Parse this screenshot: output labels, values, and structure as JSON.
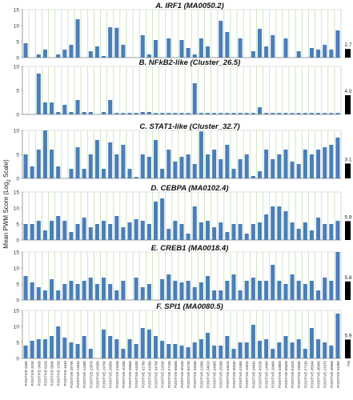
{
  "figure": {
    "ylabel": "Mean PWM Score (Log",
    "ylabel_sub": "2",
    "ylabel_end": " Scale)"
  },
  "colors": {
    "bar": "#4a7ebb",
    "bar_dark": "#000000",
    "grid": "#c6e0b4",
    "axis": "#888888",
    "title": "#111111"
  },
  "chart_data": [
    {
      "type": "bar",
      "title": "A. IRF1 (MA0050.2)",
      "ylim": [
        0,
        15
      ],
      "yticks": [
        0,
        5,
        10,
        15
      ],
      "values": [
        4.5,
        0,
        1,
        2.5,
        0,
        1,
        2.5,
        4,
        12,
        0,
        2,
        3.5,
        0.5,
        9.5,
        9.3,
        4,
        0,
        0,
        7,
        1,
        5.5,
        0,
        6,
        0,
        5.5,
        3,
        1,
        6,
        3.5,
        0,
        11.5,
        8,
        0,
        6,
        0,
        2,
        9,
        3.5,
        7,
        0,
        6,
        0,
        2,
        0,
        3,
        2.5,
        4,
        2.5,
        8.5
      ],
      "side_value": 2.7,
      "side_label": "2.7"
    },
    {
      "type": "bar",
      "title": "B. NFkB2-like (Cluster_26.5)",
      "ylim": [
        0,
        10
      ],
      "yticks": [
        0,
        5,
        10
      ],
      "values": [
        0,
        0,
        8.5,
        2.5,
        2.5,
        0.5,
        2,
        0.5,
        3,
        0.5,
        0.5,
        0,
        0.5,
        3,
        0.3,
        0.3,
        0.3,
        0.3,
        0.5,
        0.5,
        0.3,
        0.3,
        0.3,
        0.3,
        0.3,
        0.3,
        6.5,
        0.3,
        0.3,
        0.3,
        0.3,
        0.3,
        0.3,
        0.3,
        0.3,
        0.3,
        1.5,
        0.3,
        0.3,
        0.3,
        0.3,
        0.3,
        0.3,
        0.3,
        0.3,
        0.3,
        0.3,
        0.3,
        0.3
      ],
      "side_value": 4,
      "side_label": "4.0"
    },
    {
      "type": "bar",
      "title": "C. STAT1-like (Cluster_32.7)",
      "ylim": [
        0,
        10
      ],
      "yticks": [
        0,
        5,
        10
      ],
      "values": [
        5,
        2.5,
        6,
        10,
        6,
        2.5,
        0,
        2,
        6.5,
        2,
        5,
        8,
        2,
        7.5,
        5,
        7,
        2,
        0.3,
        5,
        4.5,
        8,
        2,
        6,
        3.5,
        4.5,
        5,
        3,
        9.8,
        5,
        6,
        4,
        7,
        2,
        4,
        5,
        0.5,
        1.5,
        6,
        4,
        5,
        6,
        3.5,
        3,
        6,
        5,
        6,
        6.5,
        7,
        8.5
      ],
      "side_value": 3.1,
      "side_label": "3.1"
    },
    {
      "type": "bar",
      "title": "D. CEBPA (MA0102.4)",
      "ylim": [
        0,
        15
      ],
      "yticks": [
        0,
        5,
        10,
        15
      ],
      "values": [
        5,
        5,
        6,
        3,
        6,
        7.5,
        6,
        2.5,
        5,
        7,
        4,
        5,
        6,
        5,
        7.5,
        4,
        5.5,
        6.5,
        6,
        5,
        12,
        13,
        3.5,
        6,
        5,
        2,
        10.5,
        5.5,
        6,
        4,
        5.5,
        2.5,
        5,
        5,
        2,
        5,
        5.5,
        8,
        10.5,
        10.5,
        9,
        5.5,
        3.5,
        5.5,
        3,
        7,
        5,
        5,
        6
      ],
      "side_value": 5.9,
      "side_label": "5.9"
    },
    {
      "type": "bar",
      "title": "E. CREB1 (MA0018.4)",
      "ylim": [
        0,
        15
      ],
      "yticks": [
        0,
        5,
        10,
        15
      ],
      "values": [
        7.5,
        5.5,
        4,
        3,
        6.5,
        3,
        5,
        6,
        5,
        6,
        7,
        5,
        7,
        5,
        3,
        6,
        0,
        7,
        4,
        5,
        0,
        6.5,
        8,
        6,
        5.5,
        6,
        4,
        5.5,
        7.5,
        3,
        3,
        6,
        8,
        3,
        6,
        7,
        6,
        6,
        11,
        6,
        5,
        8,
        6,
        5,
        6,
        3,
        7,
        6,
        15
      ],
      "side_value": 5.8,
      "side_label": "5.8"
    },
    {
      "type": "bar",
      "title": "F. SPI1 (MA0080.5)",
      "ylim": [
        0,
        15
      ],
      "yticks": [
        0,
        5,
        10,
        15
      ],
      "values": [
        4,
        5.5,
        6,
        6,
        7,
        10,
        6.5,
        5,
        4.5,
        7,
        3,
        0,
        9,
        7,
        6,
        3,
        6,
        4.5,
        9.5,
        9,
        7,
        5.5,
        4.5,
        4.5,
        4,
        3.5,
        5,
        6,
        8,
        4,
        4,
        7,
        3,
        5,
        5,
        10.5,
        5.5,
        6,
        3,
        5,
        7,
        5,
        6,
        3,
        9.5,
        6,
        5,
        4,
        14
      ],
      "side_value": 5.9,
      "side_label": "5.9"
    }
  ],
  "x_labels": [
    "POSITIVE-3480",
    "POSITIVE-3230",
    "POSITIVE-3430",
    "POSITIVE-5420",
    "POSITIVE-5890",
    "POSITIVE-1330",
    "POSITIVE-1640",
    "POSITIVE-28790",
    "POSITIVE-13540",
    "POSITIVE-12450",
    "POSITIVE-22870",
    "POSITIVE-15280",
    "POSITIVE-19760",
    "POSITIVE-26850",
    "POSITIVE-21590",
    "POSITIVE-10490",
    "POSITIVE-28560",
    "POSITIVE-44390",
    "POSITIVE-31780",
    "POSITIVE-41680",
    "POSITIVE-34700",
    "POSITIVE-22630",
    "POSITIVE-27150",
    "POSITIVE-56680",
    "POSITIVE-40430",
    "POSITIVE-53730",
    "POSITIVE-32050",
    "POSITIVE-12950",
    "POSITIVE-34020",
    "POSITIVE-24900",
    "POSITIVE-25380",
    "POSITIVE-34010",
    "POSITIVE-30040",
    "POSITIVE-31980",
    "POSITIVE-16520",
    "POSITIVE-34540",
    "POSITIVE-43230",
    "POSITIVE-14460",
    "POSITIVE-18460",
    "POSITIVE-33800",
    "POSITIVE-55600",
    "POSITIVE-51620",
    "POSITIVE-29540",
    "POSITIVE-37150",
    "POSITIVE-35540",
    "POSITIVE-38980",
    "POSITIVE-21970",
    "POSITIVE-48960",
    "POSITIVE-34380",
    "Avg"
  ]
}
